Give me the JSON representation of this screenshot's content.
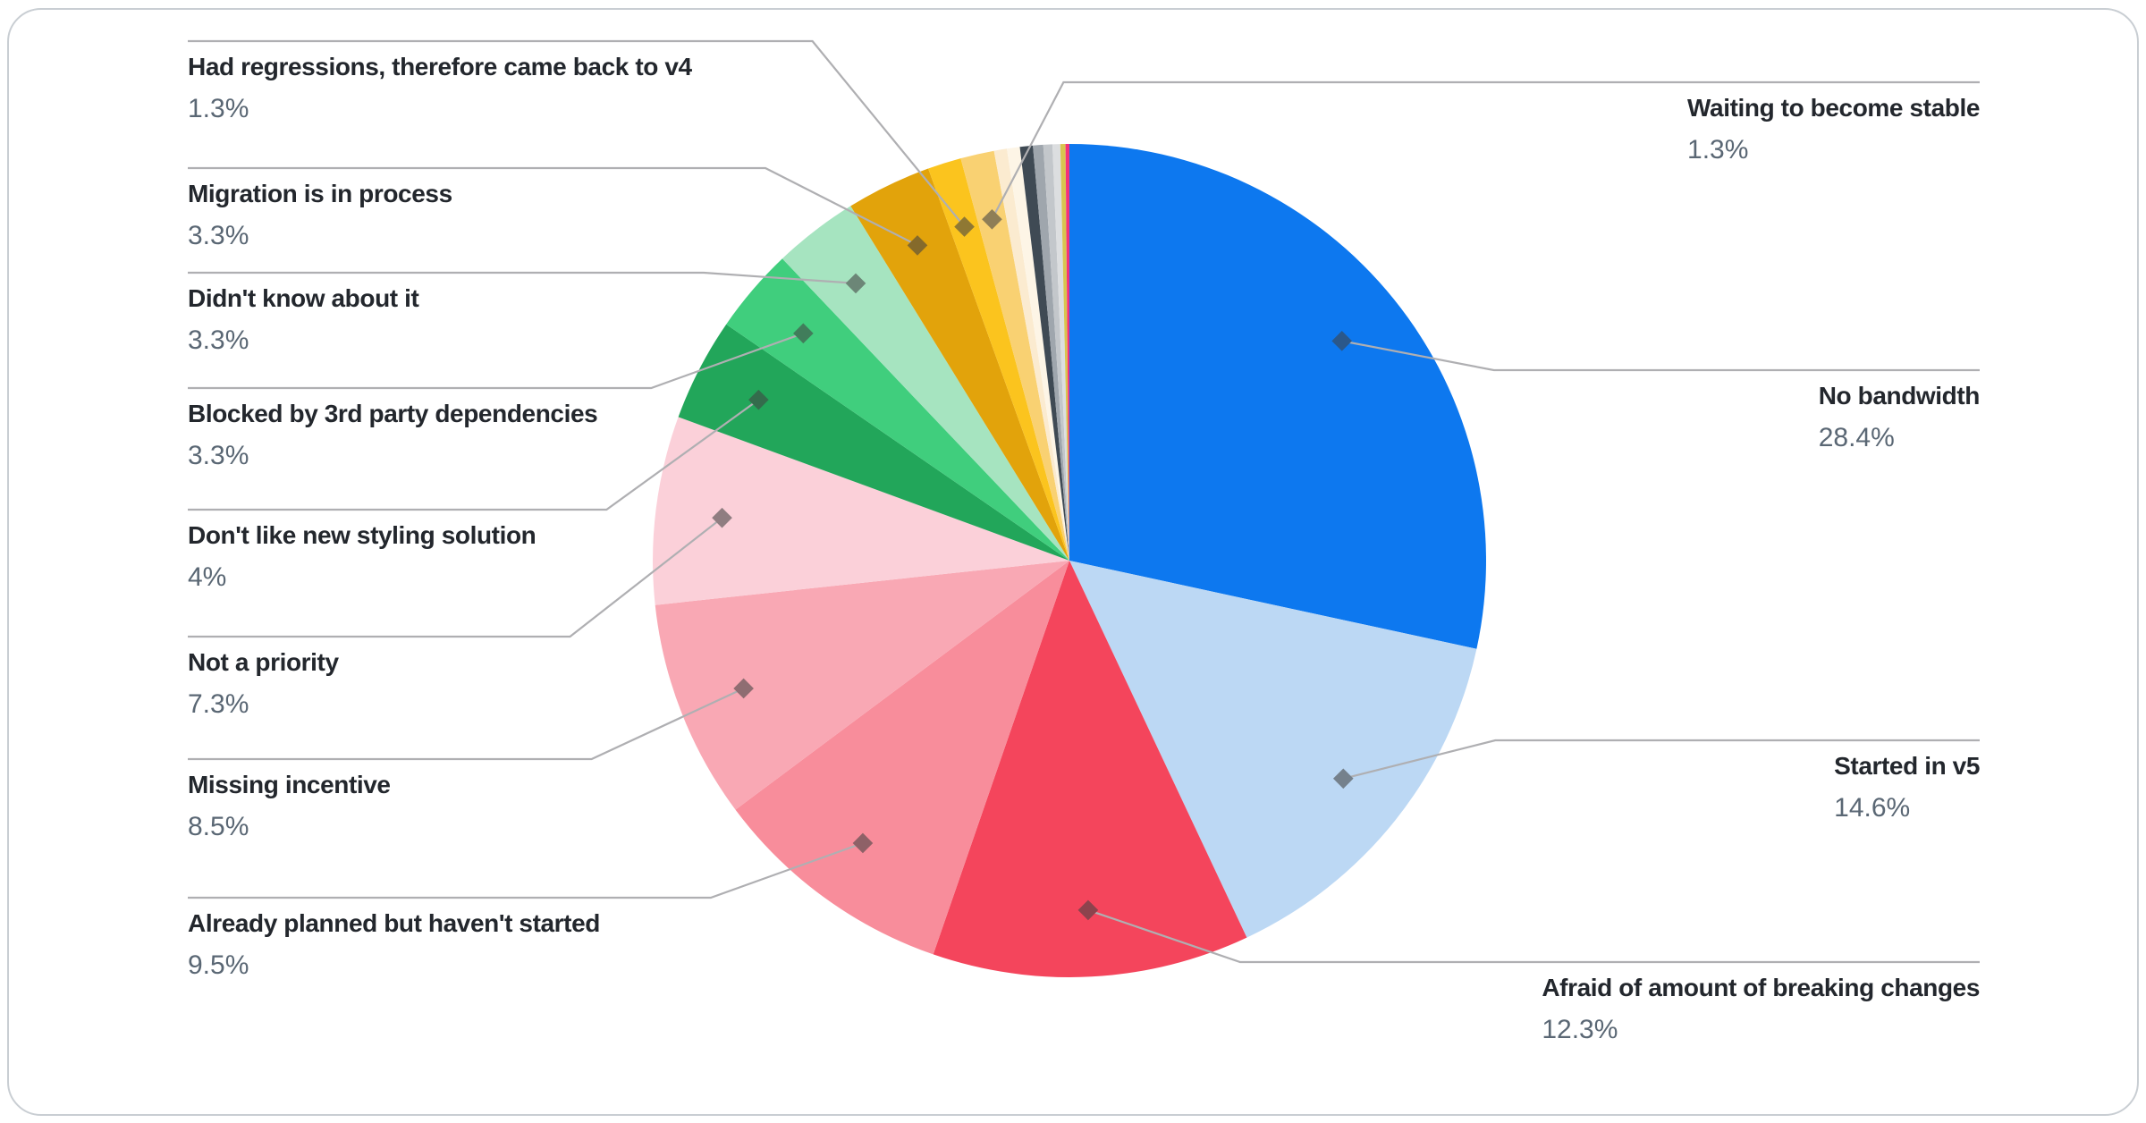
{
  "card": {
    "background": "#ffffff",
    "border_color": "#C9CED3"
  },
  "chart_data": {
    "type": "pie",
    "title": "",
    "unit": "%",
    "legend": "none",
    "grid": false,
    "start_angle_deg": -90,
    "direction": "clockwise",
    "leader_line_color": "#AFAFB2",
    "label_name_color": "#23272D",
    "label_pct_color": "#5A6774",
    "slices": [
      {
        "label": "No bandwidth",
        "value": 28.4,
        "pct": "28.4%",
        "color": "#0D78EF",
        "label_side": "right"
      },
      {
        "label": "Started in v5",
        "value": 14.6,
        "pct": "14.6%",
        "color": "#BCD8F4",
        "label_side": "right"
      },
      {
        "label": "Afraid of amount of breaking changes",
        "value": 12.3,
        "pct": "12.3%",
        "color": "#F4455C",
        "label_side": "right"
      },
      {
        "label": "Already planned but haven't started",
        "value": 9.5,
        "pct": "9.5%",
        "color": "#F88D9B",
        "label_side": "left"
      },
      {
        "label": "Missing incentive",
        "value": 8.5,
        "pct": "8.5%",
        "color": "#F9A8B4",
        "label_side": "left"
      },
      {
        "label": "Not a priority",
        "value": 7.3,
        "pct": "7.3%",
        "color": "#FBD0D9",
        "label_side": "left"
      },
      {
        "label": "Don't like new styling solution",
        "value": 4,
        "pct": "4%",
        "color": "#22A65A",
        "label_side": "left"
      },
      {
        "label": "Blocked by 3rd party dependencies",
        "value": 3.3,
        "pct": "3.3%",
        "color": "#40CE7D",
        "label_side": "left"
      },
      {
        "label": "Didn't know about it",
        "value": 3.3,
        "pct": "3.3%",
        "color": "#A6E4C0",
        "label_side": "left"
      },
      {
        "label": "Migration is in process",
        "value": 3.3,
        "pct": "3.3%",
        "color": "#E2A30B",
        "label_side": "left"
      },
      {
        "label": "Had regressions, therefore came back to v4",
        "value": 1.3,
        "pct": "1.3%",
        "color": "#FBC41E",
        "label_side": "left"
      },
      {
        "label": "Waiting to become stable",
        "value": 1.3,
        "pct": "1.3%",
        "color": "#F9D172",
        "label_side": "right"
      },
      {
        "label": null,
        "value": 0.5,
        "color": "#FBEBD0"
      },
      {
        "label": null,
        "value": 0.5,
        "color": "#FDF5E6"
      },
      {
        "label": null,
        "value": 0.5,
        "color": "#3F4A54"
      },
      {
        "label": null,
        "value": 0.4,
        "color": "#9FA6AD"
      },
      {
        "label": null,
        "value": 0.35,
        "color": "#C3C7CB"
      },
      {
        "label": null,
        "value": 0.3,
        "color": "#DCDEE0"
      },
      {
        "label": null,
        "value": 0.2,
        "color": "#D8C54F"
      },
      {
        "label": null,
        "value": 0.15,
        "color": "#F4327A"
      }
    ]
  }
}
